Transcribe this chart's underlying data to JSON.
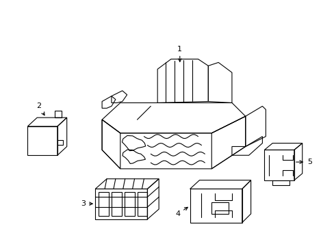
{
  "background_color": "#ffffff",
  "line_color": "#000000",
  "line_width": 0.8,
  "fig_width": 4.89,
  "fig_height": 3.6,
  "dpi": 100
}
